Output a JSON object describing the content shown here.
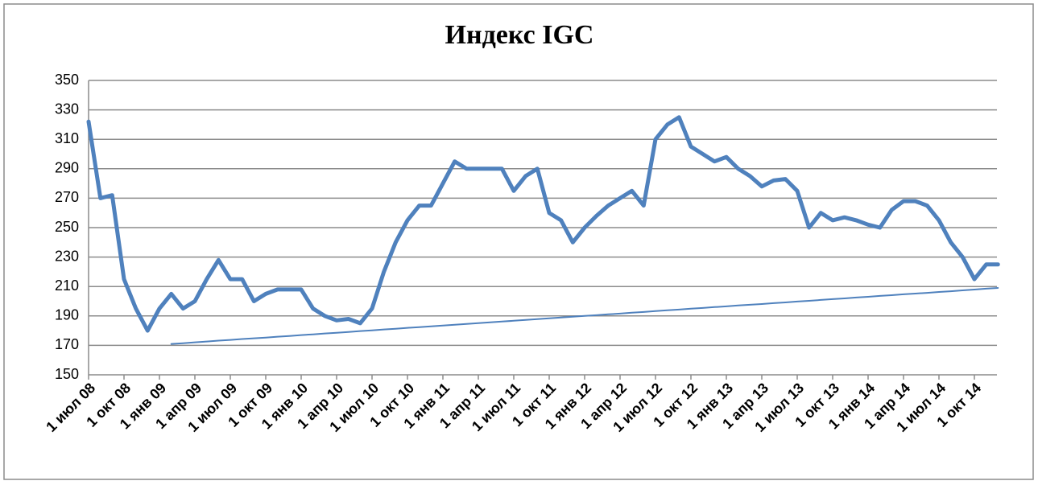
{
  "chart_data": {
    "type": "line",
    "title": "Индекс IGC",
    "categories": [
      "1 июл 08",
      null,
      null,
      "1 окт 08",
      null,
      null,
      "1 янв 09",
      null,
      null,
      "1 апр 09",
      null,
      null,
      "1 июл 09",
      null,
      null,
      "1 окт 09",
      null,
      null,
      "1 янв 10",
      null,
      null,
      "1 апр 10",
      null,
      null,
      "1 июл 10",
      null,
      null,
      "1 окт 10",
      null,
      null,
      "1 янв 11",
      null,
      null,
      "1 апр 11",
      null,
      null,
      "1 июл 11",
      null,
      null,
      "1 окт 11",
      null,
      null,
      "1 янв 12",
      null,
      null,
      "1 апр 12",
      null,
      null,
      "1 июл 12",
      null,
      null,
      "1 окт 12",
      null,
      null,
      "1 янв 13",
      null,
      null,
      "1 апр 13",
      null,
      null,
      "1 июл 13",
      null,
      null,
      "1 окт 13",
      null,
      null,
      "1 янв 14",
      null,
      null,
      "1 апр 14",
      null,
      null,
      "1 июл 14",
      null,
      null,
      "1 окт 14",
      null,
      null
    ],
    "series": [
      {
        "color": "#4f81bd",
        "width": 5,
        "values": [
          322,
          270,
          272,
          215,
          195,
          180,
          195,
          205,
          195,
          200,
          215,
          228,
          215,
          215,
          200,
          205,
          208,
          208,
          208,
          195,
          190,
          187,
          188,
          185,
          195,
          220,
          240,
          255,
          265,
          265,
          280,
          295,
          290,
          290,
          290,
          290,
          275,
          285,
          290,
          260,
          255,
          240,
          250,
          258,
          265,
          270,
          275,
          265,
          310,
          320,
          325,
          305,
          300,
          295,
          298,
          290,
          285,
          278,
          282,
          283,
          275,
          250,
          260,
          255,
          257,
          255,
          252,
          250,
          262,
          268,
          268,
          265,
          255,
          240,
          230,
          215,
          225,
          225
        ]
      },
      {
        "color": "#4f81bd",
        "width": 2,
        "values": [
          null,
          null,
          null,
          null,
          null,
          null,
          null,
          171.0,
          171.5,
          172.1,
          172.6,
          173.2,
          173.7,
          174.3,
          174.8,
          175.3,
          175.9,
          176.4,
          177.0,
          177.5,
          178.1,
          178.6,
          179.1,
          179.7,
          180.2,
          180.8,
          181.3,
          181.9,
          182.4,
          182.9,
          183.5,
          184.0,
          184.6,
          185.1,
          185.7,
          186.2,
          186.7,
          187.3,
          187.8,
          188.4,
          188.9,
          189.5,
          190.0,
          190.5,
          191.1,
          191.6,
          192.2,
          192.7,
          193.3,
          193.8,
          194.3,
          194.9,
          195.4,
          196.0,
          196.5,
          197.1,
          197.6,
          198.1,
          198.7,
          199.2,
          199.8,
          200.3,
          200.9,
          201.4,
          201.9,
          202.5,
          203.0,
          203.6,
          204.1,
          204.7,
          205.2,
          205.7,
          206.3,
          206.8,
          207.4,
          207.9,
          208.5,
          209.0
        ]
      }
    ],
    "ylim": [
      150,
      350
    ],
    "yticks": [
      150,
      170,
      190,
      210,
      230,
      250,
      270,
      290,
      310,
      330,
      350
    ],
    "grid": true
  }
}
